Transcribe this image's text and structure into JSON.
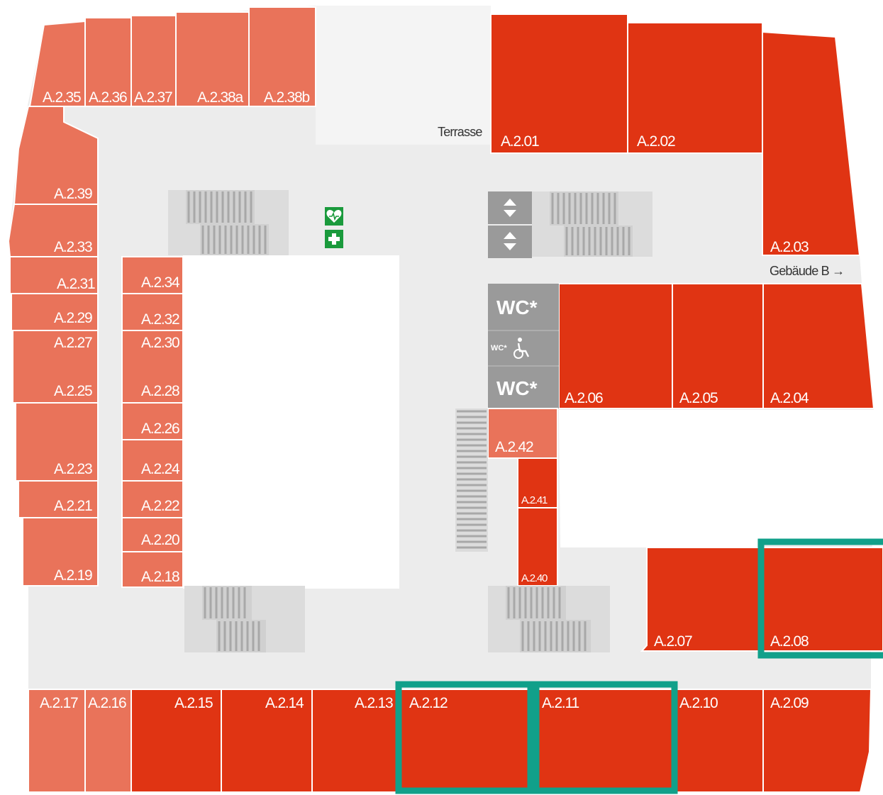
{
  "labels": {
    "terrasse": "Terrasse",
    "gebaeude_b": "Gebäude B →",
    "wc_top": "WC*",
    "wc_accessible": "WC*",
    "wc_bottom": "WC*"
  },
  "rooms": {
    "A235": "A.2.35",
    "A236": "A.2.36",
    "A237": "A.2.37",
    "A238a": "A.2.38a",
    "A238b": "A.2.38b",
    "A239": "A.2.39",
    "A233": "A.2.33",
    "A231": "A.2.31",
    "A229": "A.2.29",
    "A227": "A.2.27",
    "A225": "A.2.25",
    "A223": "A.2.23",
    "A221": "A.2.21",
    "A219": "A.2.19",
    "A234": "A.2.34",
    "A232": "A.2.32",
    "A230": "A.2.30",
    "A228": "A.2.28",
    "A226": "A.2.26",
    "A224": "A.2.24",
    "A222": "A.2.22",
    "A220": "A.2.20",
    "A218": "A.2.18",
    "A201": "A.2.01",
    "A202": "A.2.02",
    "A203": "A.2.03",
    "A204": "A.2.04",
    "A205": "A.2.05",
    "A206": "A.2.06",
    "A207": "A.2.07",
    "A208": "A.2.08",
    "A209": "A.2.09",
    "A210": "A.2.10",
    "A211": "A.2.11",
    "A212": "A.2.12",
    "A213": "A.2.13",
    "A214": "A.2.14",
    "A215": "A.2.15",
    "A216": "A.2.16",
    "A217": "A.2.17",
    "A240": "A.2.40",
    "A241": "A.2.41",
    "A242": "A.2.42"
  },
  "highlighted_rooms": [
    "A.2.08",
    "A.2.11",
    "A.2.12"
  ],
  "colors": {
    "room_light": "#e9735a",
    "room_dark": "#e03413",
    "corridor": "#ececec",
    "highlight": "#11a08a",
    "service": "#9a9a9a",
    "first_aid": "#1a9a3c"
  },
  "icons": [
    "elevator-arrow-icon",
    "defibrillator-icon",
    "first-aid-icon",
    "wheelchair-icon"
  ]
}
